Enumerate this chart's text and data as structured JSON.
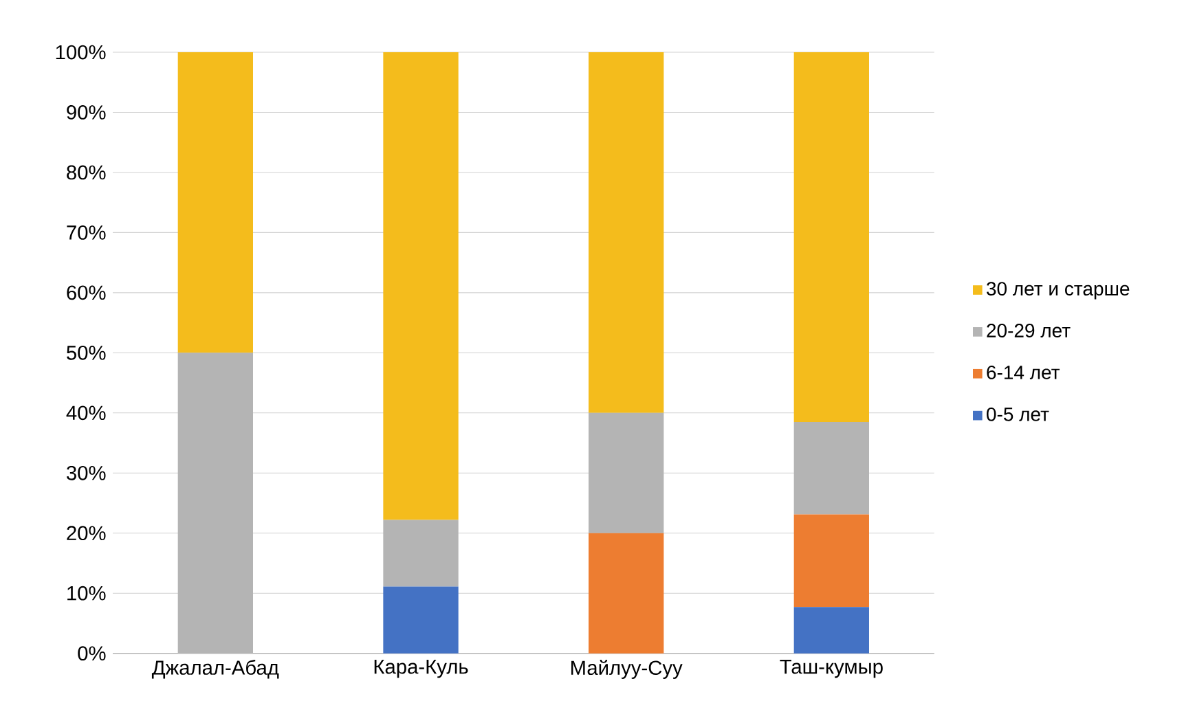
{
  "chart_data": {
    "type": "bar",
    "stacked": true,
    "categories": [
      "Джалал-Абад",
      "Кара-Куль",
      "Майлуу-Суу",
      "Таш-кумыр"
    ],
    "series": [
      {
        "name": "0-5 лет",
        "color": "#4472c4",
        "values": [
          0,
          11.1,
          0,
          7.7
        ]
      },
      {
        "name": "6-14 лет",
        "color": "#ed7d31",
        "values": [
          0,
          0,
          20,
          15.4
        ]
      },
      {
        "name": "20-29 лет",
        "color": "#b4b4b4",
        "values": [
          50,
          11.1,
          20,
          15.4
        ]
      },
      {
        "name": "30 лет и старше",
        "color": "#f4bc1c",
        "values": [
          50,
          77.8,
          60,
          61.5
        ]
      }
    ],
    "ylim": [
      0,
      100
    ],
    "yticks": [
      {
        "value": 0,
        "label": "0%"
      },
      {
        "value": 10,
        "label": "10%"
      },
      {
        "value": 20,
        "label": "20%"
      },
      {
        "value": 30,
        "label": "30%"
      },
      {
        "value": 40,
        "label": "40%"
      },
      {
        "value": 50,
        "label": "50%"
      },
      {
        "value": 60,
        "label": "60%"
      },
      {
        "value": 70,
        "label": "70%"
      },
      {
        "value": 80,
        "label": "80%"
      },
      {
        "value": 90,
        "label": "90%"
      },
      {
        "value": 100,
        "label": "100%"
      }
    ],
    "grid": "y",
    "legend": "right"
  }
}
